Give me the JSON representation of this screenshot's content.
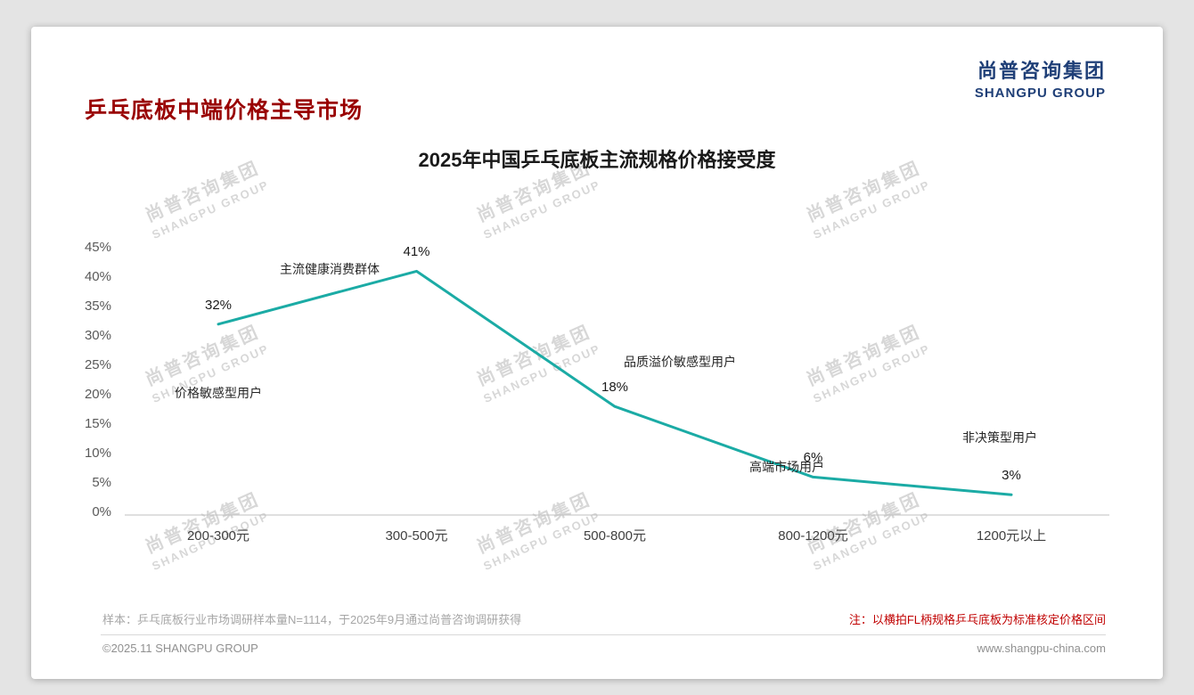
{
  "header": {
    "title": "乒乓底板中端价格主导市场",
    "logo_cn": "尚普咨询集团",
    "logo_en": "SHANGPU GROUP"
  },
  "watermark": {
    "cn": "尚普咨询集团",
    "en": "SHANGPU GROUP"
  },
  "chart_data": {
    "type": "line",
    "title": "2025年中国乒乓底板主流规格价格接受度",
    "categories": [
      "200-300元",
      "300-500元",
      "500-800元",
      "800-1200元",
      "1200元以上"
    ],
    "values": [
      32,
      41,
      18,
      6,
      3
    ],
    "data_labels": [
      "32%",
      "41%",
      "18%",
      "6%",
      "3%"
    ],
    "annotations": [
      "价格敏感型用户",
      "主流健康消费群体",
      "品质溢价敏感型用户",
      "高端市场用户",
      "非决策型用户"
    ],
    "ytick_labels": [
      "0%",
      "5%",
      "10%",
      "15%",
      "20%",
      "25%",
      "30%",
      "35%",
      "40%",
      "45%"
    ],
    "ylim": [
      0,
      45
    ],
    "ytick_step": 5,
    "grid": false,
    "legend": "none",
    "line_color": "#1BABA5",
    "axis_color": "#bfbfbf"
  },
  "footer": {
    "sample_note": "样本：乒乓底板行业市场调研样本量N=1114，于2025年9月通过尚普咨询调研获得",
    "price_note": "注：以横拍FL柄规格乒乓底板为标准核定价格区间",
    "copyright": "©2025.11 SHANGPU GROUP",
    "website": "www.shangpu-china.com"
  }
}
